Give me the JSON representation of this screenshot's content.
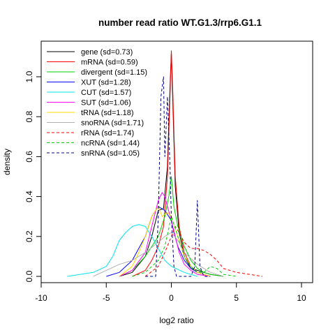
{
  "chart_data": {
    "type": "line",
    "title": "number read ratio WT.G1.3/rrp6.G1.1",
    "xlabel": "log2 ratio",
    "ylabel": "density",
    "xlim": [
      -10,
      10
    ],
    "ylim": [
      0,
      1.13
    ],
    "x_ticks": [
      -10,
      -5,
      0,
      5,
      10
    ],
    "y_ticks": [
      0.0,
      0.2,
      0.4,
      0.6,
      0.8,
      1.0
    ],
    "x_tick_labels": [
      "-10",
      "-5",
      "0",
      "5",
      "10"
    ],
    "y_tick_labels": [
      "0.0",
      "0.2",
      "0.4",
      "0.6",
      "0.8",
      "1.0"
    ],
    "grid": false,
    "legend_position": "top-left",
    "series": [
      {
        "name": "gene (sd=0.73)",
        "color": "#000000",
        "dash": "solid",
        "x": [
          -4,
          -3,
          -2,
          -1.5,
          -1,
          -0.6,
          -0.3,
          -0.1,
          0,
          0.1,
          0.3,
          0.6,
          1,
          1.5,
          2,
          2.5,
          3,
          4
        ],
        "y": [
          0.0,
          0.02,
          0.1,
          0.2,
          0.33,
          0.34,
          0.55,
          0.95,
          1.12,
          0.9,
          0.45,
          0.22,
          0.1,
          0.04,
          0.03,
          0.02,
          0.01,
          0.0
        ]
      },
      {
        "name": "mRNA (sd=0.59)",
        "color": "#ff0000",
        "dash": "solid",
        "x": [
          -3,
          -2,
          -1.5,
          -1,
          -0.6,
          -0.3,
          -0.1,
          0,
          0.1,
          0.3,
          0.6,
          1,
          1.5,
          2,
          3
        ],
        "y": [
          0.0,
          0.03,
          0.08,
          0.15,
          0.25,
          0.5,
          0.9,
          1.13,
          0.95,
          0.5,
          0.25,
          0.12,
          0.05,
          0.02,
          0.0
        ]
      },
      {
        "name": "divergent (sd=1.15)",
        "color": "#00cd00",
        "dash": "solid",
        "x": [
          -4,
          -3,
          -2,
          -1.5,
          -1,
          -0.5,
          -0.2,
          0,
          0.2,
          0.5,
          1,
          1.5,
          2,
          2.5,
          3,
          4
        ],
        "y": [
          0.0,
          0.03,
          0.1,
          0.15,
          0.2,
          0.3,
          0.4,
          0.5,
          0.35,
          0.25,
          0.15,
          0.08,
          0.04,
          0.02,
          0.01,
          0.0
        ]
      },
      {
        "name": "XUT (sd=1.28)",
        "color": "#0000ff",
        "dash": "solid",
        "x": [
          -5,
          -4,
          -3,
          -2,
          -1.5,
          -1,
          -0.5,
          -0.2,
          0,
          0.2,
          0.5,
          1,
          1.5,
          2,
          3
        ],
        "y": [
          0.0,
          0.02,
          0.08,
          0.2,
          0.3,
          0.35,
          0.33,
          0.3,
          0.28,
          0.22,
          0.15,
          0.08,
          0.04,
          0.02,
          0.0
        ]
      },
      {
        "name": "CUT (sd=1.57)",
        "color": "#00e5ee",
        "dash": "solid",
        "x": [
          -8,
          -7,
          -6,
          -5,
          -4.5,
          -4,
          -3.5,
          -3,
          -2.5,
          -2,
          -1.5,
          -1,
          -0.5,
          0,
          1,
          2
        ],
        "y": [
          0.0,
          0.01,
          0.02,
          0.05,
          0.1,
          0.18,
          0.22,
          0.25,
          0.26,
          0.25,
          0.2,
          0.14,
          0.08,
          0.05,
          0.02,
          0.0
        ]
      },
      {
        "name": "SUT (sd=1.06)",
        "color": "#ff00ff",
        "dash": "solid",
        "x": [
          -4,
          -3,
          -2,
          -1.5,
          -1,
          -0.7,
          -0.5,
          -0.3,
          0,
          0.3,
          0.6,
          1,
          1.5,
          2,
          3
        ],
        "y": [
          0.0,
          0.03,
          0.12,
          0.25,
          0.38,
          0.42,
          0.4,
          0.35,
          0.28,
          0.2,
          0.12,
          0.06,
          0.03,
          0.01,
          0.0
        ]
      },
      {
        "name": "tRNA (sd=1.18)",
        "color": "#ffd700",
        "dash": "solid",
        "x": [
          -4,
          -3,
          -2.5,
          -2,
          -1.5,
          -1,
          -0.7,
          -0.3,
          0,
          0.5,
          1,
          1.5,
          2,
          3
        ],
        "y": [
          0.0,
          0.05,
          0.12,
          0.2,
          0.3,
          0.35,
          0.3,
          0.32,
          0.3,
          0.2,
          0.1,
          0.05,
          0.02,
          0.0
        ]
      },
      {
        "name": "snoRNA (sd=1.71)",
        "color": "#b0b0b0",
        "dash": "solid",
        "x": [
          -6,
          -5,
          -4,
          -3,
          -2,
          -1,
          -0.5,
          0,
          0.5,
          1,
          2,
          3,
          4
        ],
        "y": [
          0.0,
          0.03,
          0.06,
          0.08,
          0.12,
          0.17,
          0.2,
          0.22,
          0.18,
          0.12,
          0.06,
          0.02,
          0.0
        ]
      },
      {
        "name": "rRNA (sd=1.74)",
        "color": "#ff0000",
        "dash": "dashed",
        "x": [
          -2,
          -1,
          -0.5,
          0,
          0.3,
          0.6,
          1,
          1.5,
          2,
          2.5,
          3,
          3.5,
          4,
          5,
          6,
          7
        ],
        "y": [
          0.0,
          0.05,
          0.12,
          0.2,
          0.25,
          0.22,
          0.17,
          0.14,
          0.14,
          0.13,
          0.11,
          0.08,
          0.04,
          0.02,
          0.01,
          0.0
        ]
      },
      {
        "name": "ncRNA (sd=1.44)",
        "color": "#00cd00",
        "dash": "dashed",
        "x": [
          -3,
          -2,
          -1,
          -0.5,
          0,
          0.5,
          1,
          1.5,
          2,
          2.5,
          3,
          3.5,
          4,
          5
        ],
        "y": [
          0.0,
          0.02,
          0.08,
          0.15,
          0.3,
          0.2,
          0.1,
          0.05,
          0.02,
          0.02,
          0.05,
          0.04,
          0.01,
          0.0
        ]
      },
      {
        "name": "snRNA (sd=1.05)",
        "color": "#00008b",
        "dash": "dashed",
        "x": [
          -2,
          -1.2,
          -1,
          -0.8,
          -0.6,
          -0.5,
          -0.3,
          -0.1,
          0,
          0.2,
          0.4,
          0.8,
          1.2,
          1.5,
          1.8,
          2.0,
          2.2,
          2.5,
          3
        ],
        "y": [
          0.0,
          0.0,
          0.3,
          0.9,
          1.0,
          0.6,
          0.9,
          0.55,
          0.3,
          0.05,
          0.0,
          0.0,
          0.0,
          0.0,
          0.05,
          0.38,
          0.05,
          0.0,
          0.0
        ]
      }
    ]
  }
}
